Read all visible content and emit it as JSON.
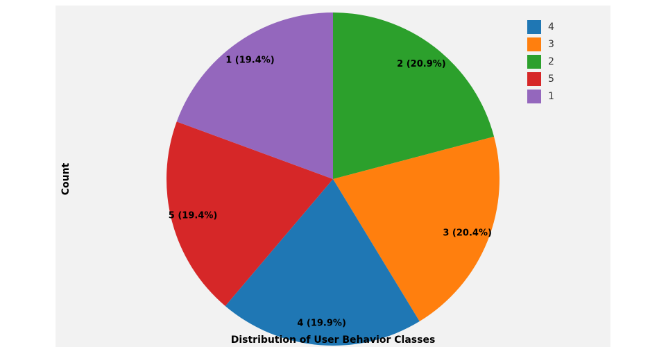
{
  "chart_data": {
    "type": "pie",
    "title": "",
    "xlabel": "Distribution of User Behavior Classes",
    "ylabel": "Count",
    "slices": [
      {
        "label": "2",
        "percent": 20.9,
        "color": "#2ca02c",
        "text": "2 (20.9%)"
      },
      {
        "label": "3",
        "percent": 20.4,
        "color": "#ff7f0e",
        "text": "3 (20.4%)"
      },
      {
        "label": "4",
        "percent": 19.9,
        "color": "#1f77b4",
        "text": "4 (19.9%)"
      },
      {
        "label": "5",
        "percent": 19.4,
        "color": "#d62728",
        "text": "5 (19.4%)"
      },
      {
        "label": "1",
        "percent": 19.4,
        "color": "#9467bd",
        "text": "1 (19.4%)"
      }
    ],
    "legend": {
      "placement": "top-right",
      "items": [
        {
          "label": "4",
          "color": "#1f77b4"
        },
        {
          "label": "3",
          "color": "#ff7f0e"
        },
        {
          "label": "2",
          "color": "#2ca02c"
        },
        {
          "label": "5",
          "color": "#d62728"
        },
        {
          "label": "1",
          "color": "#9467bd"
        }
      ]
    }
  }
}
